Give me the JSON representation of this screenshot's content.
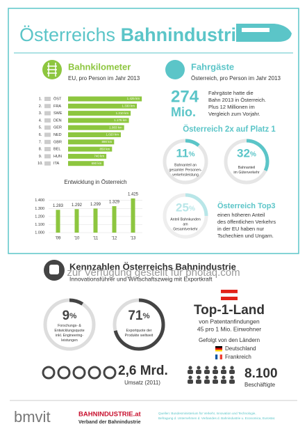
{
  "header": {
    "title_light": "Österreichs",
    "title_bold": "Bahnindustrie"
  },
  "bahnkilometer": {
    "title": "Bahnkilometer",
    "subtitle": "EU, pro Person im Jahr 2013"
  },
  "chart_data": [
    {
      "type": "bar",
      "horizontal": true,
      "ranks": [
        "1.",
        "2.",
        "3.",
        "4.",
        "5.",
        "6.",
        "7.",
        "8.",
        "9.",
        "10."
      ],
      "categories": [
        "ÖST",
        "FRA",
        "SWE",
        "DEN",
        "GER",
        "NED",
        "GBR",
        "BEL",
        "HUN",
        "ITA"
      ],
      "values": [
        1425,
        1330,
        1210,
        1176,
        1083,
        1020,
        890,
        850,
        740,
        690
      ],
      "value_labels": [
        "1.425 km",
        "1.330 km",
        "1.210 km",
        "1.176 km",
        "1.083 km",
        "1.020 km",
        "890 km",
        "850 km",
        "740 km",
        "690 km"
      ],
      "color": "#8dc63f",
      "xlim": [
        0,
        1450
      ]
    },
    {
      "type": "bar",
      "title": "Entwicklung in Österreich",
      "categories": [
        "'09",
        "'10",
        "'11",
        "'12",
        "'13"
      ],
      "values": [
        1283,
        1292,
        1299,
        1329,
        1425
      ],
      "value_labels": [
        "1.283",
        "1.292",
        "1.299",
        "1.329",
        "1.425"
      ],
      "color": "#8dc63f",
      "ylim": [
        1000,
        1450
      ],
      "yticks": [
        {
          "value": 1000,
          "label": "1.000"
        },
        {
          "value": 1100,
          "label": "1.100"
        },
        {
          "value": 1200,
          "label": "1.200"
        },
        {
          "value": 1300,
          "label": "1.300"
        },
        {
          "value": 1400,
          "label": "1.400"
        }
      ],
      "grid": true
    }
  ],
  "fahrgaeste": {
    "title": "Fahrgäste",
    "subtitle": "Österreich, pro Person im Jahr 2013",
    "big": "274",
    "big_unit": "Mio.",
    "lines": [
      "Fahrgäste hatte die",
      "Bahn 2013 in Österreich.",
      "Plus 12 Millionen im",
      "Vergleich zum Vorjahr."
    ]
  },
  "platz": {
    "title": "Österreich 2x auf Platz 1",
    "circles": [
      {
        "value": 11,
        "unit": "%",
        "lines": [
          "Bahnanteil an",
          "gesamter Personen-",
          "verkehrsleistung"
        ]
      },
      {
        "value": 32,
        "unit": "%",
        "lines": [
          "Bahnanteil",
          "im Güterverkehr"
        ]
      },
      {
        "value": 25,
        "unit": "%",
        "lines": [
          "Anteil Bahnkunden",
          "am",
          "Gesamtverkehr"
        ]
      }
    ],
    "top3_title": "Österreich Top3",
    "top3_lines": [
      "einen höheren Anteil",
      "des öffentlichen Verkehrs",
      "in der EU haben nur",
      "Tschechien und Ungarn."
    ]
  },
  "watermark": "zur Verfügung gestellt für photaq.com",
  "kennzahlen": {
    "title": "Kennzahlen Österreichs Bahnindustrie",
    "subtitle": "Innovationsführer und Wirtschaftszweig mit Exportkraft",
    "circles": [
      {
        "value": 9,
        "unit": "%",
        "lines": [
          "Forschungs- &",
          "Entwicklungsquote",
          "inkl. Engineering-",
          "leistungen"
        ]
      },
      {
        "value": 71,
        "unit": "%",
        "lines": [
          "Exportquote der",
          "Produkte weltweit"
        ]
      }
    ],
    "top_title": "Top-1-Land",
    "top_lines": [
      "von Patentanfindungen",
      "45 pro 1 Mio. Einwohner"
    ],
    "followed": "Gefolgt von den Ländern",
    "countries": [
      "Deutschland",
      "Frankreich"
    ],
    "umsatz": "2,6 Mrd.",
    "umsatz_label": "Umsatz (2011)",
    "beschaeftigte": "8.100",
    "beschaeftigte_label": "Beschäftigte"
  },
  "footer": {
    "logo1": "bmvit",
    "logo2": "BAHNINDUSTRIE.at",
    "logo2_sub": "Verband der Bahnindustrie",
    "source_lines": [
      "Quellen: Bundesministerium für Verkehr, Innovation und Technologie,",
      "Befragung d. Unternehmen d. Verbandes d. Bahnindustrie u. Economica, Eurostat."
    ]
  }
}
